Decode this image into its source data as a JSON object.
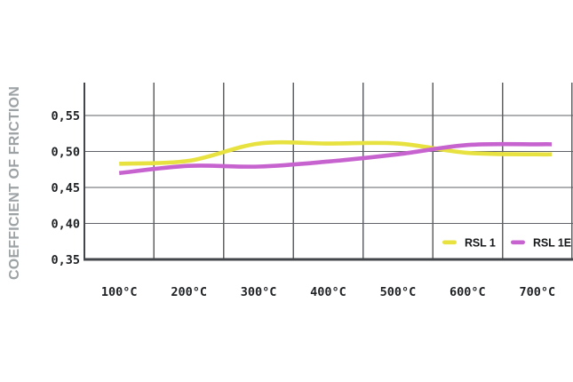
{
  "chart_data": {
    "type": "line",
    "title": "",
    "ylabel": "COEFFICIENT OF FRICTION",
    "xlabel": "",
    "categories": [
      "100°C",
      "200°C",
      "300°C",
      "400°C",
      "500°C",
      "600°C",
      "700°C"
    ],
    "y_tick_labels": [
      "0,55",
      "0,50",
      "0,45",
      "0,40",
      "0,35"
    ],
    "y_tick_values": [
      0.55,
      0.5,
      0.45,
      0.4,
      0.35
    ],
    "ylim": [
      0.35,
      0.595
    ],
    "grid": true,
    "legend_position": "inside-bottom-right",
    "series": [
      {
        "name": "RSL 1",
        "color": "#e8e240",
        "values": [
          0.483,
          0.487,
          0.511,
          0.511,
          0.511,
          0.498,
          0.496
        ]
      },
      {
        "name": "RSL 1E",
        "color": "#c763cf",
        "values": [
          0.47,
          0.48,
          0.479,
          0.486,
          0.496,
          0.509,
          0.51
        ]
      }
    ]
  },
  "colors": {
    "background": "#ffffff",
    "grid": "#5f6266",
    "axis": "#43464a",
    "tick_text": "#202326",
    "legend_text": "#17191b",
    "y_title": "#9da2a5",
    "series_rsl1": "#e8e240",
    "series_rsl1e": "#c763cf"
  }
}
